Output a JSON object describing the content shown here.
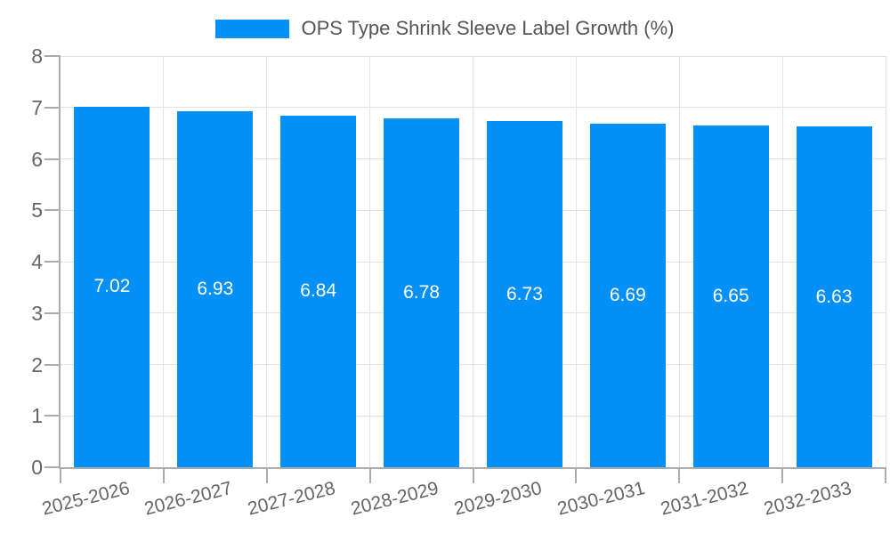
{
  "chart_data": {
    "type": "bar",
    "title": "",
    "legend": "OPS Type Shrink Sleeve Label Growth (%)",
    "legend_position": "top-center",
    "categories": [
      "2025-2026",
      "2026-2027",
      "2027-2028",
      "2028-2029",
      "2029-2030",
      "2030-2031",
      "2031-2032",
      "2032-2033"
    ],
    "values": [
      7.02,
      6.93,
      6.84,
      6.78,
      6.73,
      6.69,
      6.65,
      6.63
    ],
    "value_labels": [
      "7.02",
      "6.93",
      "6.84",
      "6.78",
      "6.73",
      "6.69",
      "6.65",
      "6.63"
    ],
    "xlabel": "",
    "ylabel": "",
    "ylim": [
      0,
      8
    ],
    "yticks": [
      0,
      1,
      2,
      3,
      4,
      5,
      6,
      7,
      8
    ],
    "grid": true,
    "colors": {
      "bar": "#0490f8",
      "bar_value_text": "#ffffff",
      "axis_line": "#ababab",
      "tick": "#ababab",
      "gridline": "#e3e3e3",
      "axis_text": "#666666",
      "legend_text": "#555555",
      "background": "#ffffff"
    }
  }
}
